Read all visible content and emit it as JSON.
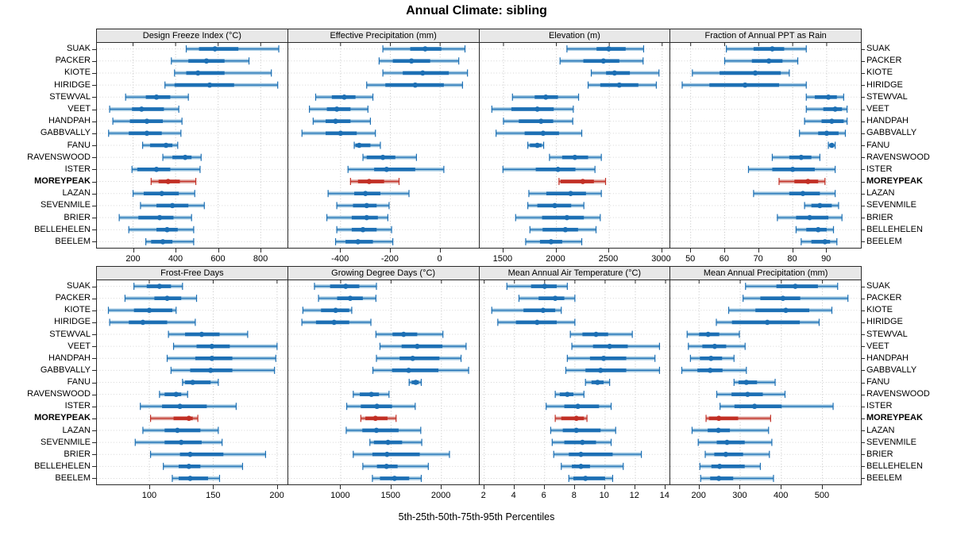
{
  "title": "Annual Climate: sibling",
  "footer_label": "5th-25th-50th-75th-95th Percentiles",
  "highlight_site": "MOREYPEAK",
  "sites": [
    "SUAK",
    "PACKER",
    "KIOTE",
    "HIRIDGE",
    "STEWVAL",
    "VEET",
    "HANDPAH",
    "GABBVALLY",
    "FANU",
    "RAVENSWOOD",
    "ISTER",
    "MOREYPEAK",
    "LAZAN",
    "SEVENMILE",
    "BRIER",
    "BELLEHELEN",
    "BEELEM"
  ],
  "colors": {
    "blue": "#1c6fb4",
    "light_blue": "#9ec6e0",
    "red": "#c22f25",
    "light_red": "#dfa49e",
    "grid": "#c4c4c4",
    "row_guide": "#d6d6d6",
    "strip_bg": "#e8e8e8",
    "border": "#2a2a2a"
  },
  "chart_data": {
    "type": "dotplot-percentiles",
    "percentile_labels": [
      "5th",
      "25th",
      "50th",
      "75th",
      "95th"
    ],
    "layout": "2 rows x 4 columns, shared site axis",
    "panels": [
      {
        "title": "Design Freeze Index (°C)",
        "row": 0,
        "col": 0,
        "range": [
          30,
          925
        ],
        "ticks": [
          200,
          400,
          600,
          800
        ],
        "values": [
          [
            450,
            510,
            585,
            695,
            885
          ],
          [
            380,
            460,
            545,
            630,
            745
          ],
          [
            395,
            450,
            505,
            630,
            850
          ],
          [
            350,
            395,
            560,
            675,
            880
          ],
          [
            165,
            260,
            310,
            375,
            460
          ],
          [
            90,
            195,
            240,
            345,
            415
          ],
          [
            105,
            185,
            265,
            340,
            430
          ],
          [
            85,
            180,
            265,
            335,
            425
          ],
          [
            245,
            280,
            355,
            385,
            410
          ],
          [
            340,
            385,
            445,
            475,
            520
          ],
          [
            195,
            220,
            310,
            375,
            515
          ],
          [
            285,
            320,
            365,
            420,
            495
          ],
          [
            200,
            250,
            335,
            415,
            490
          ],
          [
            235,
            310,
            385,
            460,
            535
          ],
          [
            135,
            225,
            325,
            390,
            475
          ],
          [
            180,
            310,
            360,
            410,
            485
          ],
          [
            260,
            285,
            340,
            385,
            485
          ]
        ]
      },
      {
        "title": "Effective Precipitation (mm)",
        "row": 0,
        "col": 1,
        "range": [
          -610,
          155
        ],
        "ticks": [
          -400,
          -200,
          0
        ],
        "values": [
          [
            -230,
            -120,
            -60,
            5,
            100
          ],
          [
            -245,
            -190,
            -115,
            -40,
            75
          ],
          [
            -230,
            -150,
            -70,
            35,
            110
          ],
          [
            -295,
            -220,
            -100,
            15,
            90
          ],
          [
            -500,
            -435,
            -385,
            -340,
            -270
          ],
          [
            -525,
            -455,
            -415,
            -360,
            -290
          ],
          [
            -510,
            -460,
            -420,
            -360,
            -280
          ],
          [
            -555,
            -460,
            -400,
            -335,
            -260
          ],
          [
            -345,
            -340,
            -325,
            -280,
            -240
          ],
          [
            -310,
            -295,
            -230,
            -180,
            -95
          ],
          [
            -370,
            -265,
            -215,
            -100,
            15
          ],
          [
            -360,
            -330,
            -285,
            -225,
            -165
          ],
          [
            -450,
            -345,
            -300,
            -240,
            -125
          ],
          [
            -415,
            -350,
            -295,
            -255,
            -205
          ],
          [
            -455,
            -355,
            -295,
            -250,
            -210
          ],
          [
            -415,
            -355,
            -310,
            -255,
            -195
          ],
          [
            -420,
            -380,
            -330,
            -270,
            -190
          ]
        ]
      },
      {
        "title": "Elevation (m)",
        "row": 0,
        "col": 2,
        "range": [
          1275,
          3075
        ],
        "ticks": [
          1500,
          2000,
          2500,
          3000
        ],
        "values": [
          [
            2100,
            2380,
            2495,
            2655,
            2825
          ],
          [
            2035,
            2255,
            2445,
            2595,
            2820
          ],
          [
            2330,
            2470,
            2550,
            2695,
            2970
          ],
          [
            2300,
            2415,
            2595,
            2775,
            2945
          ],
          [
            1585,
            1795,
            1900,
            2015,
            2210
          ],
          [
            1390,
            1575,
            1820,
            1975,
            2160
          ],
          [
            1500,
            1645,
            1855,
            1970,
            2155
          ],
          [
            1430,
            1700,
            1875,
            2025,
            2240
          ],
          [
            1730,
            1750,
            1820,
            1860,
            1880
          ],
          [
            1935,
            2055,
            2175,
            2300,
            2425
          ],
          [
            1495,
            1805,
            2015,
            2180,
            2365
          ],
          [
            2025,
            2040,
            2250,
            2355,
            2465
          ],
          [
            1740,
            1905,
            2135,
            2280,
            2425
          ],
          [
            1730,
            1820,
            1985,
            2140,
            2260
          ],
          [
            1615,
            1865,
            2100,
            2260,
            2415
          ],
          [
            1750,
            1870,
            2085,
            2205,
            2375
          ],
          [
            1710,
            1845,
            1950,
            2055,
            2240
          ]
        ]
      },
      {
        "title": "Fraction of Annual PPT as Rain",
        "row": 0,
        "col": 3,
        "range": [
          44,
          100
        ],
        "ticks": [
          50,
          60,
          70,
          80,
          90
        ],
        "values": [
          [
            60.5,
            68.5,
            74,
            77.5,
            84
          ],
          [
            60,
            68,
            73,
            77,
            81.5
          ],
          [
            50.5,
            58.5,
            69,
            76.5,
            79
          ],
          [
            47.5,
            55.5,
            66,
            76,
            84
          ],
          [
            84,
            86.5,
            90.5,
            93,
            95
          ],
          [
            84,
            89,
            92.5,
            94.5,
            96
          ],
          [
            83.5,
            88.5,
            91.5,
            95,
            96
          ],
          [
            82,
            87.5,
            90,
            93.5,
            95.5
          ],
          [
            90.5,
            91,
            91.5,
            92,
            92.5
          ],
          [
            74,
            79,
            82.5,
            85.5,
            88
          ],
          [
            67,
            74,
            80,
            86.5,
            92.5
          ],
          [
            76,
            80.5,
            84.5,
            87.5,
            89.5
          ],
          [
            68.5,
            79,
            83,
            88,
            92.5
          ],
          [
            83.5,
            85.5,
            88,
            91.5,
            93.5
          ],
          [
            75.5,
            81,
            85,
            90.5,
            94.5
          ],
          [
            81,
            84,
            87.5,
            90,
            92
          ],
          [
            82.5,
            85.5,
            89.5,
            91,
            93
          ]
        ]
      },
      {
        "title": "Frost-Free Days",
        "row": 1,
        "col": 0,
        "range": [
          59,
          208
        ],
        "ticks": [
          100,
          150,
          200
        ],
        "values": [
          [
            88,
            98,
            108,
            117,
            126
          ],
          [
            81,
            104,
            114,
            125,
            137
          ],
          [
            68,
            88,
            100,
            118,
            121
          ],
          [
            69,
            84,
            95,
            114,
            136
          ],
          [
            115,
            128,
            141,
            155,
            177
          ],
          [
            119,
            137,
            149,
            163,
            200
          ],
          [
            114,
            136,
            149,
            165,
            199
          ],
          [
            117,
            132,
            148,
            165,
            198
          ],
          [
            126,
            128,
            134,
            148,
            154
          ],
          [
            108,
            112,
            121,
            125,
            130
          ],
          [
            93,
            110,
            124,
            145,
            168
          ],
          [
            101,
            119,
            131,
            134,
            138
          ],
          [
            95,
            112,
            122,
            140,
            154
          ],
          [
            89,
            112,
            125,
            141,
            157
          ],
          [
            101,
            124,
            132,
            158,
            191
          ],
          [
            111,
            123,
            131,
            140,
            173
          ],
          [
            118,
            123,
            132,
            146,
            155
          ]
        ]
      },
      {
        "title": "Growing Degree Days (°C)",
        "row": 1,
        "col": 1,
        "range": [
          480,
          2370
        ],
        "ticks": [
          1000,
          1500,
          2000
        ],
        "values": [
          [
            740,
            895,
            1050,
            1185,
            1355
          ],
          [
            780,
            965,
            1095,
            1220,
            1350
          ],
          [
            625,
            805,
            950,
            1085,
            1110
          ],
          [
            615,
            755,
            935,
            1085,
            1300
          ],
          [
            1350,
            1515,
            1625,
            1760,
            2015
          ],
          [
            1390,
            1605,
            1760,
            2010,
            2245
          ],
          [
            1355,
            1585,
            1715,
            1980,
            2195
          ],
          [
            1320,
            1510,
            1675,
            1970,
            2270
          ],
          [
            1680,
            1705,
            1745,
            1775,
            1800
          ],
          [
            1125,
            1190,
            1305,
            1380,
            1480
          ],
          [
            1060,
            1200,
            1360,
            1510,
            1740
          ],
          [
            1200,
            1245,
            1345,
            1465,
            1550
          ],
          [
            1055,
            1215,
            1355,
            1575,
            1795
          ],
          [
            1290,
            1330,
            1470,
            1610,
            1805
          ],
          [
            1125,
            1315,
            1460,
            1785,
            2080
          ],
          [
            1220,
            1360,
            1455,
            1565,
            1870
          ],
          [
            1315,
            1390,
            1535,
            1680,
            1800
          ]
        ]
      },
      {
        "title": "Mean Annual Air Temperature (°C)",
        "row": 1,
        "col": 2,
        "range": [
          1.7,
          14.3
        ],
        "ticks": [
          2,
          4,
          6,
          8,
          10,
          12,
          14
        ],
        "values": [
          [
            3.5,
            5.1,
            6.0,
            6.8,
            7.5
          ],
          [
            4.3,
            5.6,
            6.7,
            7.3,
            8.0
          ],
          [
            2.5,
            4.6,
            5.9,
            6.7,
            7.1
          ],
          [
            2.9,
            4.1,
            5.5,
            6.8,
            8.0
          ],
          [
            7.7,
            8.5,
            9.4,
            10.2,
            11.8
          ],
          [
            7.8,
            9.2,
            10.3,
            11.5,
            13.6
          ],
          [
            7.5,
            9.0,
            9.9,
            11.4,
            13.3
          ],
          [
            7.4,
            8.7,
            9.7,
            11.4,
            13.6
          ],
          [
            8.7,
            9.1,
            9.5,
            9.9,
            10.3
          ],
          [
            6.7,
            7.0,
            7.5,
            7.9,
            8.6
          ],
          [
            6.1,
            7.3,
            8.2,
            9.6,
            10.4
          ],
          [
            6.7,
            7.1,
            8.1,
            8.6,
            8.8
          ],
          [
            6.4,
            7.2,
            8.1,
            9.7,
            10.7
          ],
          [
            6.5,
            7.3,
            8.5,
            9.4,
            10.4
          ],
          [
            6.6,
            7.6,
            8.4,
            10.5,
            12.4
          ],
          [
            7.1,
            7.8,
            8.4,
            9.0,
            11.2
          ],
          [
            7.6,
            7.9,
            8.7,
            10.0,
            10.5
          ]
        ]
      },
      {
        "title": "Mean Annual Precipitation (mm)",
        "row": 1,
        "col": 3,
        "range": [
          130,
          593
        ],
        "ticks": [
          200,
          300,
          400,
          500
        ],
        "values": [
          [
            313,
            388,
            434,
            489,
            537
          ],
          [
            307,
            349,
            404,
            446,
            562
          ],
          [
            272,
            337,
            411,
            468,
            523
          ],
          [
            242,
            280,
            366,
            445,
            492
          ],
          [
            171,
            200,
            222,
            249,
            298
          ],
          [
            174,
            208,
            238,
            266,
            312
          ],
          [
            179,
            202,
            229,
            256,
            285
          ],
          [
            158,
            196,
            227,
            257,
            315
          ],
          [
            285,
            296,
            315,
            341,
            385
          ],
          [
            243,
            279,
            318,
            355,
            409
          ],
          [
            251,
            286,
            335,
            401,
            526
          ],
          [
            217,
            224,
            248,
            295,
            374
          ],
          [
            183,
            221,
            247,
            275,
            369
          ],
          [
            198,
            243,
            268,
            311,
            377
          ],
          [
            215,
            237,
            265,
            307,
            371
          ],
          [
            202,
            230,
            250,
            311,
            349
          ],
          [
            204,
            227,
            248,
            283,
            381
          ]
        ]
      }
    ]
  }
}
